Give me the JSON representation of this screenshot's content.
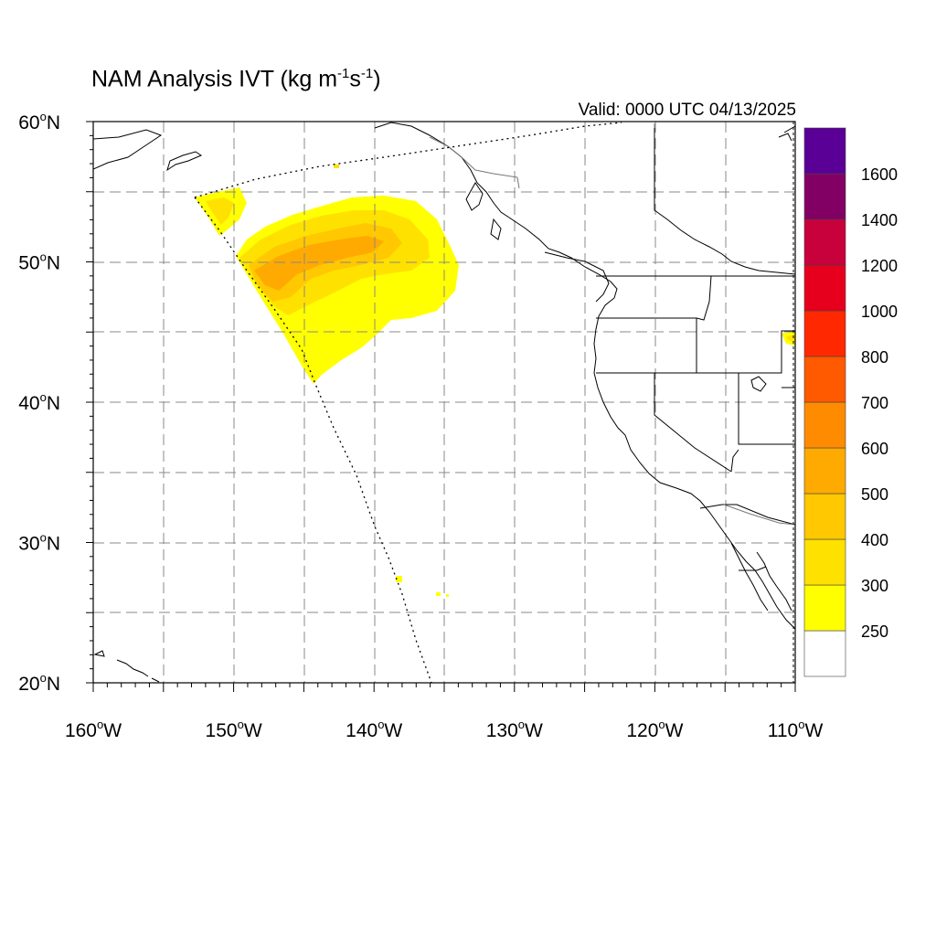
{
  "title": {
    "prefix": "NAM Analysis IVT (kg m",
    "sup1": "-1",
    "mid": "s",
    "sup2": "-1",
    "suffix": ")"
  },
  "valid_label": "Valid: 0000 UTC 04/13/2025",
  "map": {
    "projection": "lat-lon",
    "lat_range": [
      20,
      60
    ],
    "lon_range": [
      -160,
      -110
    ],
    "grid": true,
    "lat_ticks": [
      {
        "value": 60,
        "label": "60",
        "hem": "N"
      },
      {
        "value": 50,
        "label": "50",
        "hem": "N"
      },
      {
        "value": 40,
        "label": "40",
        "hem": "N"
      },
      {
        "value": 30,
        "label": "30",
        "hem": "N"
      },
      {
        "value": 20,
        "label": "20",
        "hem": "N"
      }
    ],
    "lon_ticks": [
      {
        "value": -160,
        "label": "160",
        "hem": "W"
      },
      {
        "value": -150,
        "label": "150",
        "hem": "W"
      },
      {
        "value": -140,
        "label": "140",
        "hem": "W"
      },
      {
        "value": -130,
        "label": "130",
        "hem": "W"
      },
      {
        "value": -120,
        "label": "120",
        "hem": "W"
      },
      {
        "value": -110,
        "label": "110",
        "hem": "W"
      }
    ],
    "degree_symbol": "o"
  },
  "colorbar": {
    "levels": [
      "250",
      "300",
      "400",
      "500",
      "600",
      "700",
      "800",
      "1000",
      "1200",
      "1400",
      "1600"
    ],
    "colors": [
      "#ffffff",
      "#ffff00",
      "#ffe100",
      "#ffc800",
      "#ffaa00",
      "#ff8c00",
      "#ff5a00",
      "#ff2800",
      "#e6001e",
      "#c8003c",
      "#820064",
      "#5a0096"
    ]
  },
  "chart_data": {
    "type": "heatmap",
    "variable": "IVT",
    "units": "kg m-1 s-1",
    "region_lon": [
      -160,
      -110
    ],
    "region_lat": [
      20,
      60
    ],
    "features": [
      {
        "area": "main plume centered near 50N 145W",
        "max_category": "500-600"
      },
      {
        "area": "small patch near 54N 152W",
        "max_category": "300-400"
      },
      {
        "area": "small patch near 45N 111W",
        "max_category": "300-400"
      }
    ]
  }
}
